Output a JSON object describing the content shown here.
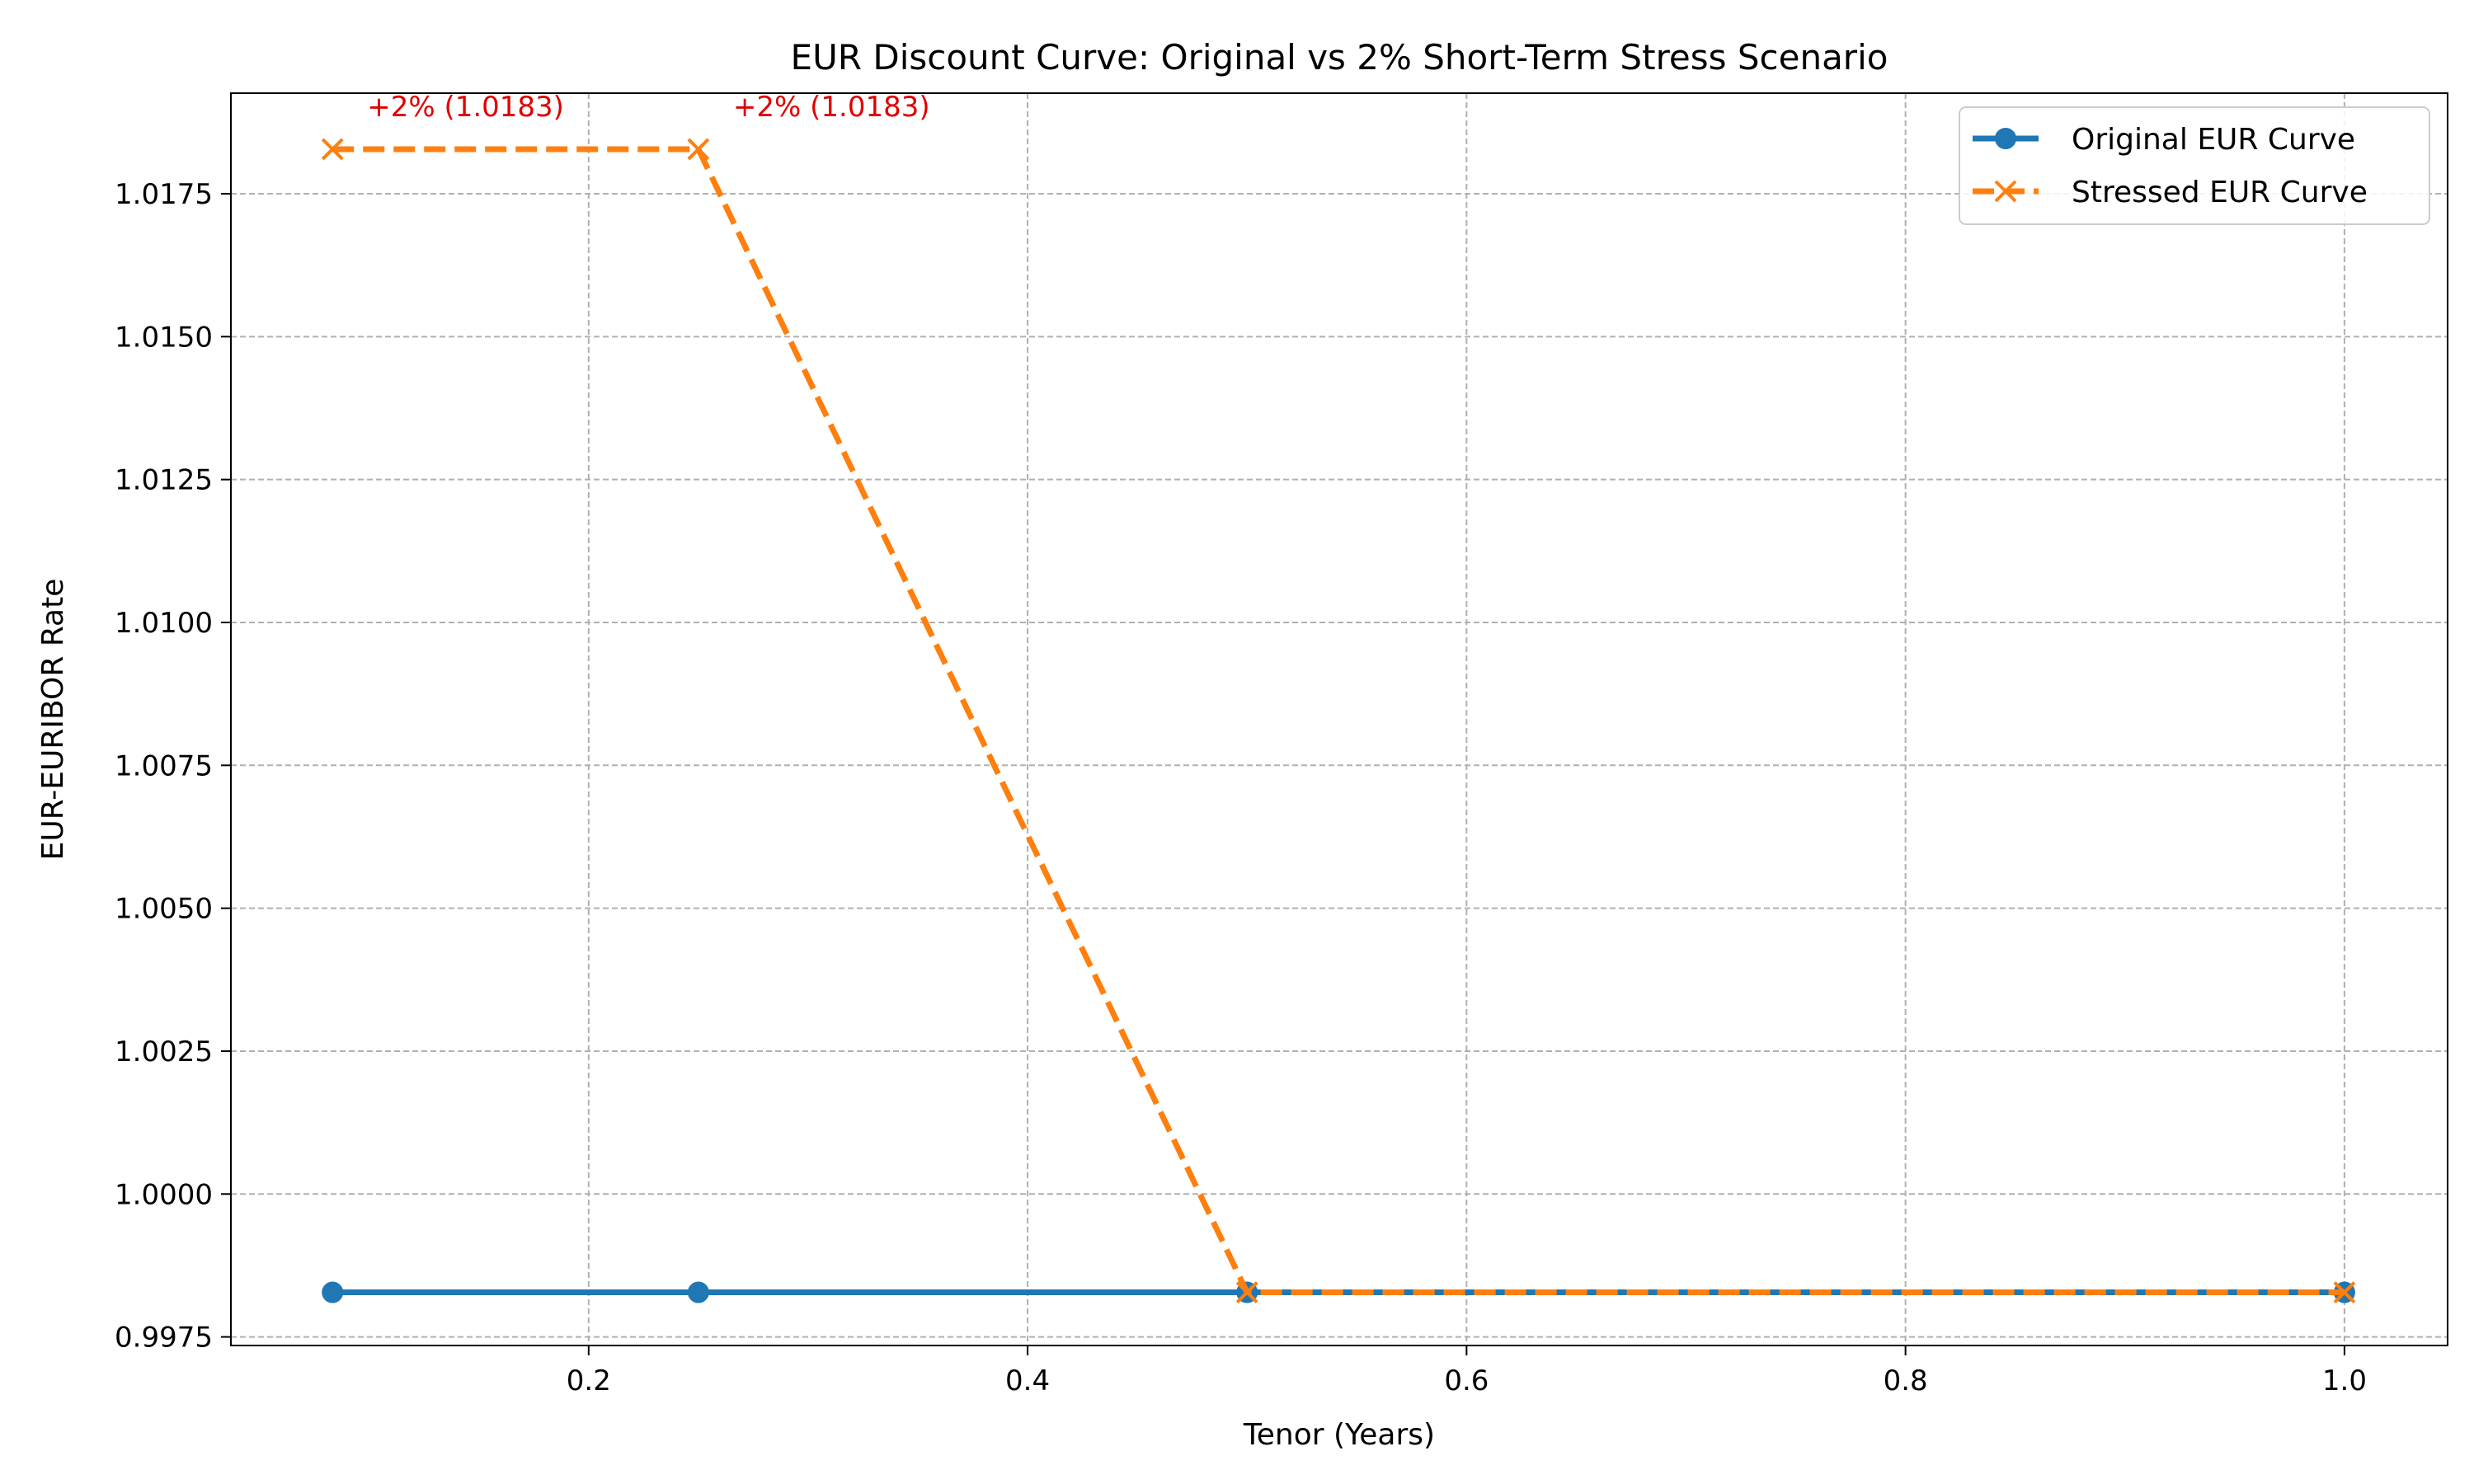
{
  "chart_data": {
    "type": "line",
    "title": "EUR Discount Curve: Original vs 2% Short-Term Stress Scenario",
    "xlabel": "Tenor (Years)",
    "ylabel": "EUR-EURIBOR Rate",
    "xlim": [
      0.037,
      1.047
    ],
    "ylim": [
      0.99735,
      1.01926
    ],
    "x_ticks": [
      0.2,
      0.4,
      0.6,
      0.8,
      1.0
    ],
    "x_tick_labels": [
      "0.2",
      "0.4",
      "0.6",
      "0.8",
      "1.0"
    ],
    "y_ticks": [
      0.9975,
      1.0,
      1.0025,
      1.005,
      1.0075,
      1.01,
      1.0125,
      1.015,
      1.0175
    ],
    "y_tick_labels": [
      "0.9975",
      "1.0000",
      "1.0025",
      "1.0050",
      "1.0075",
      "1.0100",
      "1.0125",
      "1.0150",
      "1.0175"
    ],
    "grid": true,
    "legend_position": "top-right",
    "series": [
      {
        "name": "Original EUR Curve",
        "color": "#1f77b4",
        "marker": "circle",
        "line_style": "solid",
        "x": [
          0.0833,
          0.25,
          0.5,
          1.0
        ],
        "y": [
          0.99828,
          0.99828,
          0.99828,
          0.99828
        ]
      },
      {
        "name": "Stressed EUR Curve",
        "color": "#ff7f0e",
        "marker": "x",
        "line_style": "dashed",
        "x": [
          0.0833,
          0.25,
          0.5,
          1.0
        ],
        "y": [
          1.01828,
          1.01828,
          0.99828,
          0.99828
        ]
      }
    ],
    "annotations": [
      {
        "text": "+2% (1.0183)",
        "x": 0.0833,
        "y": 1.01828,
        "color": "#e00000"
      },
      {
        "text": "+2% (1.0183)",
        "x": 0.25,
        "y": 1.01828,
        "color": "#e00000"
      }
    ]
  }
}
